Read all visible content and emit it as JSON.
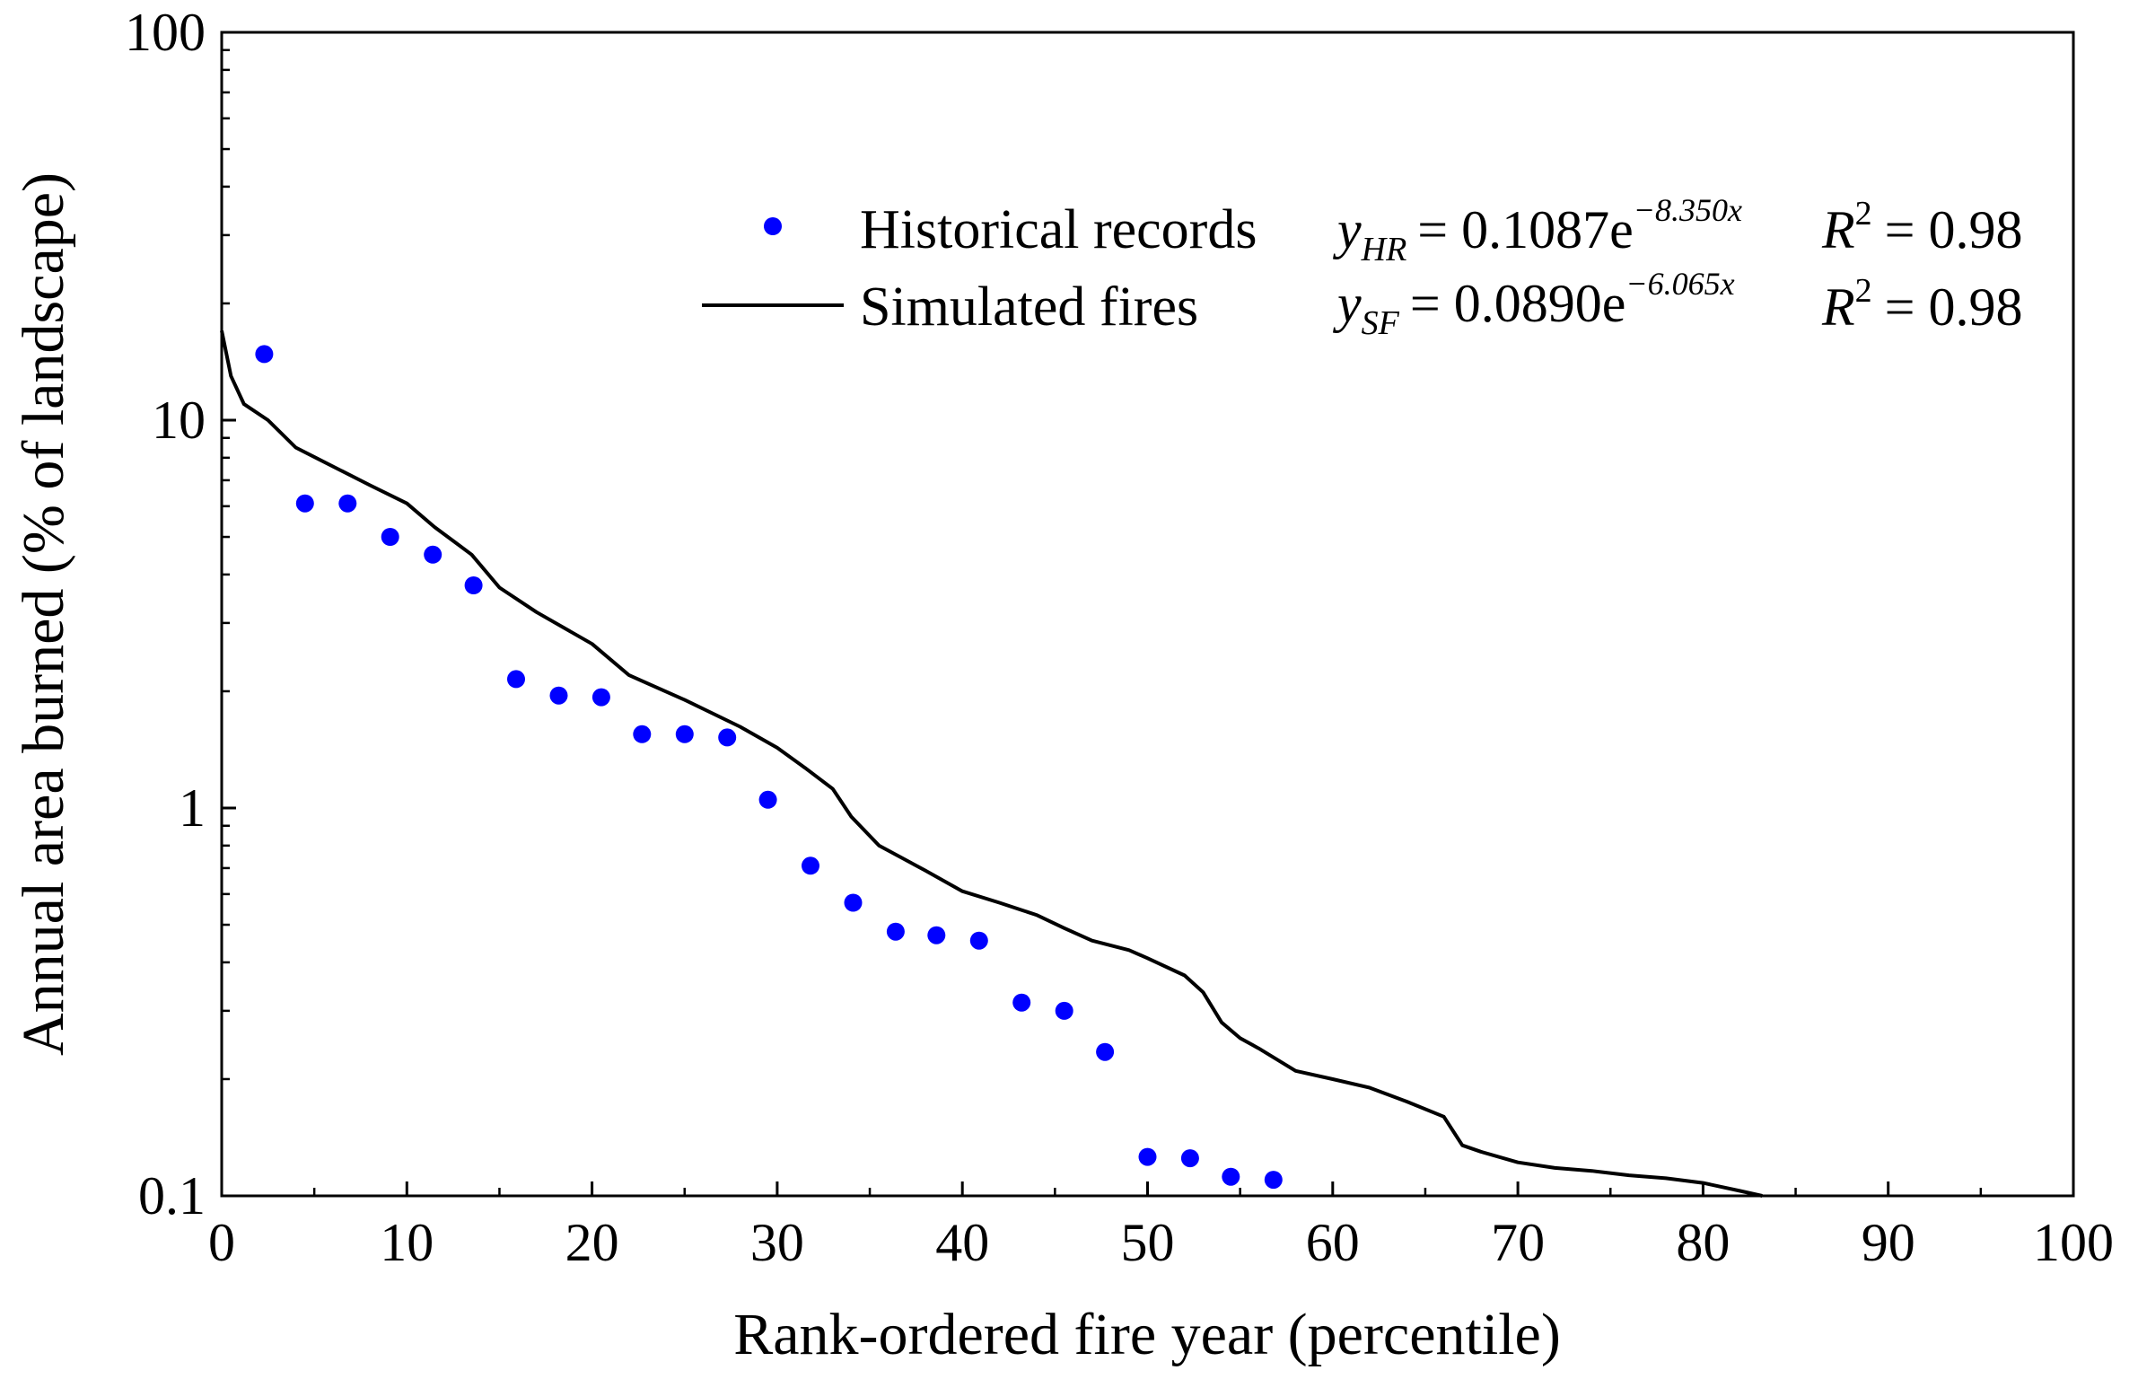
{
  "chart_data": {
    "type": "scatter+line",
    "xlabel": "Rank-ordered fire year (percentile)",
    "ylabel": "Annual area burned (% of landscape)",
    "xlim": [
      0,
      100
    ],
    "ylim": [
      0.1,
      100
    ],
    "yscale": "log",
    "x_ticks": [
      "0",
      "10",
      "20",
      "30",
      "40",
      "50",
      "60",
      "70",
      "80",
      "90",
      "100"
    ],
    "y_ticks": [
      "0.1",
      "1",
      "10",
      "100"
    ],
    "legend_position": "top-right",
    "series": [
      {
        "name": "Historical records",
        "kind": "scatter",
        "color": "#0000ff",
        "equation": {
          "lhs": "y",
          "subscript": "HR",
          "rhs": "= 0.1087e",
          "exponent": "−8.350x",
          "r2_label": "R",
          "r2_sup": "2",
          "r2_value": "= 0.98"
        },
        "points": [
          [
            2.3,
            14.8
          ],
          [
            4.5,
            6.1
          ],
          [
            6.8,
            6.1
          ],
          [
            9.1,
            5.0
          ],
          [
            11.4,
            4.5
          ],
          [
            13.6,
            3.75
          ],
          [
            15.9,
            2.15
          ],
          [
            18.2,
            1.95
          ],
          [
            20.5,
            1.93
          ],
          [
            22.7,
            1.55
          ],
          [
            25.0,
            1.55
          ],
          [
            27.3,
            1.52
          ],
          [
            29.5,
            1.05
          ],
          [
            31.8,
            0.71
          ],
          [
            34.1,
            0.57
          ],
          [
            36.4,
            0.48
          ],
          [
            38.6,
            0.47
          ],
          [
            40.9,
            0.455
          ],
          [
            43.2,
            0.315
          ],
          [
            45.5,
            0.3
          ],
          [
            47.7,
            0.235
          ],
          [
            50.0,
            0.126
          ],
          [
            52.3,
            0.125
          ],
          [
            54.5,
            0.112
          ],
          [
            56.8,
            0.11
          ]
        ]
      },
      {
        "name": "Simulated fires",
        "kind": "line",
        "color": "#000000",
        "equation": {
          "lhs": "y",
          "subscript": "SF",
          "rhs": "= 0.0890e",
          "exponent": "−6.065x",
          "r2_label": "R",
          "r2_sup": "2",
          "r2_value": "= 0.98"
        },
        "points": [
          [
            0,
            17.0
          ],
          [
            0.5,
            13.0
          ],
          [
            1.2,
            11.0
          ],
          [
            2.5,
            10.0
          ],
          [
            4,
            8.5
          ],
          [
            6,
            7.6
          ],
          [
            8,
            6.8
          ],
          [
            10,
            6.1
          ],
          [
            11.5,
            5.3
          ],
          [
            13.5,
            4.5
          ],
          [
            15,
            3.7
          ],
          [
            17,
            3.2
          ],
          [
            20,
            2.65
          ],
          [
            22,
            2.2
          ],
          [
            25,
            1.9
          ],
          [
            28,
            1.62
          ],
          [
            30,
            1.43
          ],
          [
            31.5,
            1.27
          ],
          [
            33,
            1.12
          ],
          [
            34,
            0.95
          ],
          [
            35.5,
            0.8
          ],
          [
            38,
            0.69
          ],
          [
            40,
            0.61
          ],
          [
            42,
            0.57
          ],
          [
            44,
            0.53
          ],
          [
            45.5,
            0.49
          ],
          [
            47,
            0.455
          ],
          [
            49,
            0.43
          ],
          [
            50,
            0.41
          ],
          [
            52,
            0.37
          ],
          [
            53,
            0.335
          ],
          [
            54,
            0.28
          ],
          [
            55,
            0.255
          ],
          [
            56,
            0.24
          ],
          [
            58,
            0.21
          ],
          [
            60,
            0.2
          ],
          [
            62,
            0.19
          ],
          [
            64,
            0.175
          ],
          [
            66,
            0.16
          ],
          [
            67,
            0.135
          ],
          [
            68,
            0.13
          ],
          [
            70,
            0.122
          ],
          [
            72,
            0.118
          ],
          [
            74,
            0.116
          ],
          [
            76,
            0.113
          ],
          [
            78,
            0.111
          ],
          [
            80,
            0.108
          ],
          [
            82,
            0.103
          ],
          [
            83.2,
            0.1
          ]
        ]
      }
    ]
  },
  "colors": {
    "historical": "#0000ff",
    "simulated": "#000000",
    "axis": "#000000",
    "background": "#ffffff"
  }
}
